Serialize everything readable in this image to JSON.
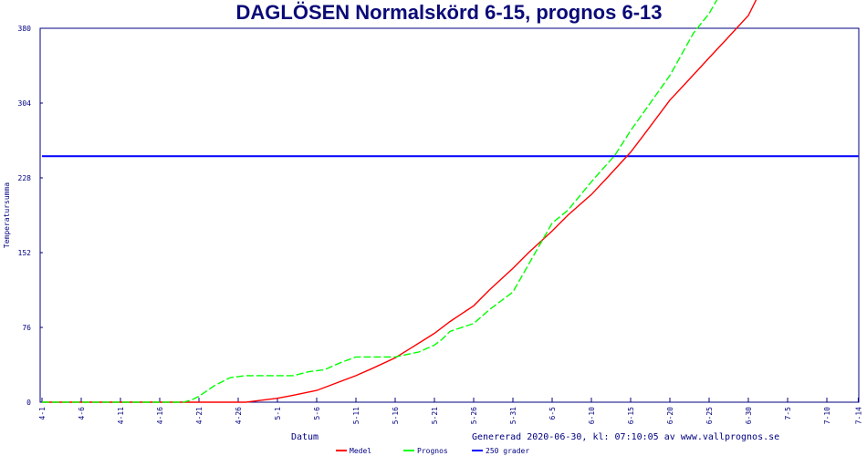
{
  "chart_data": {
    "type": "line",
    "title": "DAGLÖSEN Normalskörd 6-15, prognos 6-13",
    "xlabel": "Datum",
    "ylabel": "Temperatursumma",
    "footer": "Genererad 2020-06-30, kl: 07:10:05 av www.vallprognos.se",
    "xlim": [
      "2020-04-01",
      "2020-07-14"
    ],
    "ylim": [
      0,
      380
    ],
    "y_ticks": [
      0,
      76,
      152,
      228,
      304,
      380
    ],
    "x_ticks": [
      "4-1",
      "4-6",
      "4-11",
      "4-16",
      "4-21",
      "4-26",
      "5-1",
      "5-6",
      "5-11",
      "5-16",
      "5-21",
      "5-26",
      "5-31",
      "6-5",
      "6-10",
      "6-15",
      "6-20",
      "6-25",
      "6-30",
      "7-5",
      "7-10",
      "7-14"
    ],
    "grid": false,
    "legend_placement": "bottom",
    "series": [
      {
        "name": "Medel",
        "color": "#ff0000",
        "style": "solid",
        "points": [
          [
            "4-1",
            0
          ],
          [
            "4-27",
            0
          ],
          [
            "4-29",
            2
          ],
          [
            "5-1",
            4
          ],
          [
            "5-3",
            7
          ],
          [
            "5-6",
            12
          ],
          [
            "5-8",
            18
          ],
          [
            "5-11",
            27
          ],
          [
            "5-13",
            34
          ],
          [
            "5-16",
            45
          ],
          [
            "5-18",
            55
          ],
          [
            "5-21",
            70
          ],
          [
            "5-23",
            82
          ],
          [
            "5-26",
            98
          ],
          [
            "5-28",
            114
          ],
          [
            "5-31",
            136
          ],
          [
            "6-2",
            152
          ],
          [
            "6-5",
            174
          ],
          [
            "6-7",
            190
          ],
          [
            "6-10",
            211
          ],
          [
            "6-12",
            228
          ],
          [
            "6-15",
            254
          ],
          [
            "6-17",
            275
          ],
          [
            "6-20",
            307
          ],
          [
            "6-22",
            324
          ],
          [
            "6-25",
            350
          ],
          [
            "6-27",
            367
          ],
          [
            "6-30",
            393
          ],
          [
            "7-1",
            409
          ]
        ]
      },
      {
        "name": "Prognos",
        "color": "#00ff00",
        "style": "dashed",
        "points": [
          [
            "4-1",
            0
          ],
          [
            "4-19",
            0
          ],
          [
            "4-20",
            2
          ],
          [
            "4-21",
            6
          ],
          [
            "4-23",
            17
          ],
          [
            "4-25",
            25
          ],
          [
            "4-27",
            27
          ],
          [
            "5-3",
            27
          ],
          [
            "5-5",
            31
          ],
          [
            "5-7",
            33
          ],
          [
            "5-9",
            40
          ],
          [
            "5-11",
            46
          ],
          [
            "5-16",
            46
          ],
          [
            "5-19",
            51
          ],
          [
            "5-21",
            58
          ],
          [
            "5-22",
            64
          ],
          [
            "5-23",
            72
          ],
          [
            "5-26",
            80
          ],
          [
            "5-28",
            94
          ],
          [
            "5-31",
            112
          ],
          [
            "6-2",
            140
          ],
          [
            "6-5",
            182
          ],
          [
            "6-7",
            195
          ],
          [
            "6-10",
            224
          ],
          [
            "6-13",
            251
          ],
          [
            "6-15",
            276
          ],
          [
            "6-20",
            332
          ],
          [
            "6-23",
            375
          ],
          [
            "6-25",
            395
          ],
          [
            "6-26",
            409
          ]
        ]
      },
      {
        "name": "250 grader",
        "color": "#0000ff",
        "style": "solid",
        "points": [
          [
            "4-1",
            250
          ],
          [
            "7-14",
            250
          ]
        ]
      }
    ]
  }
}
